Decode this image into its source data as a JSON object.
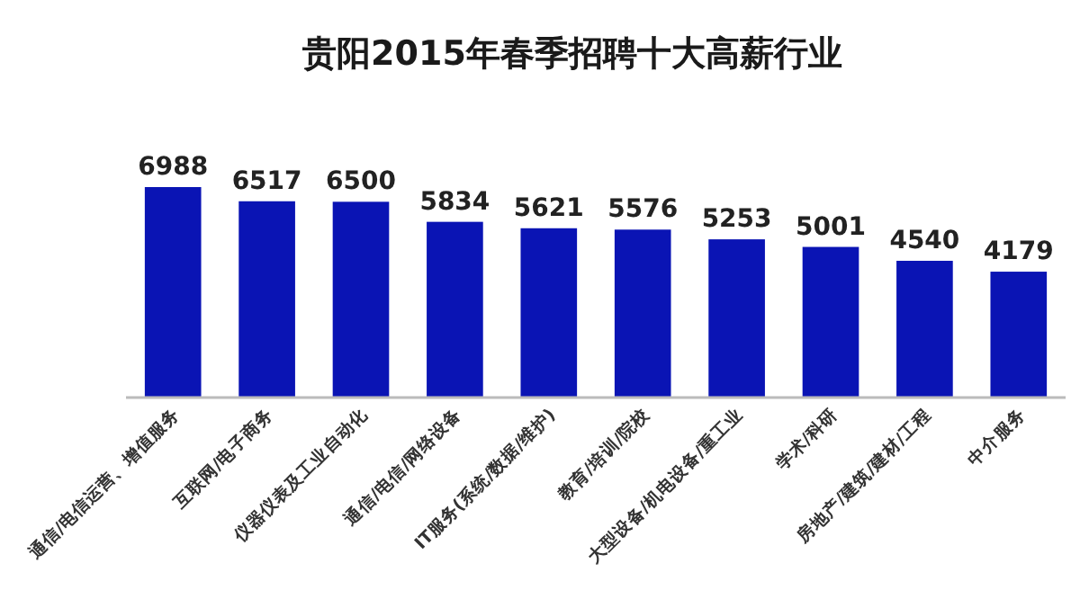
{
  "chart_data": {
    "type": "bar",
    "title": "贵阳2015年春季招聘十大高薪行业",
    "categories": [
      "通信/电信运营、增值服务",
      "互联网/电子商务",
      "仪器仪表及工业自动化",
      "通信/电信/网络设备",
      "IT服务(系统/数据/维护)",
      "教育/培训/院校",
      "大型设备/机电设备/重工业",
      "学术/科研",
      "房地产/建筑/建材/工程",
      "中介服务"
    ],
    "values": [
      6988,
      6517,
      6500,
      5834,
      5621,
      5576,
      5253,
      5001,
      4540,
      4179
    ],
    "color": "#0a14b4",
    "data_labels": true
  }
}
